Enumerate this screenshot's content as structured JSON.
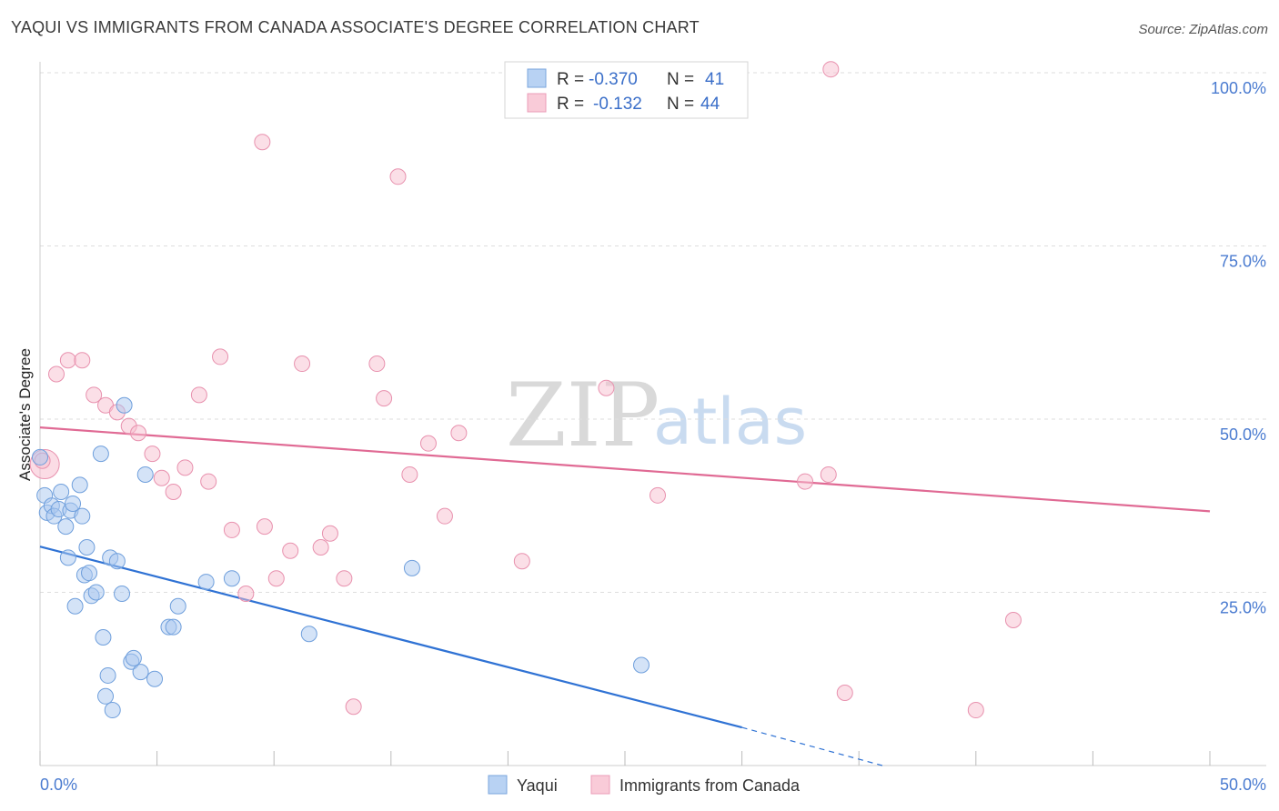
{
  "header": {
    "title": "YAQUI VS IMMIGRANTS FROM CANADA ASSOCIATE'S DEGREE CORRELATION CHART",
    "source": "Source: ZipAtlas.com"
  },
  "stats": {
    "yaqui": {
      "r_label": "R =",
      "r_value": "-0.370",
      "n_label": "N =",
      "n_value": "41"
    },
    "canada": {
      "r_label": "R =",
      "r_value": "-0.132",
      "n_label": "N =",
      "n_value": "44"
    }
  },
  "watermark": {
    "zip": "ZIP",
    "atlas": "atlas"
  },
  "legend": {
    "series1": "Yaqui",
    "series2": "Immigrants from Canada"
  },
  "colors": {
    "yaqui_fill": "#a9c8f0",
    "yaqui_stroke": "#6f9fdc",
    "yaqui_line": "#2f72d4",
    "canada_fill": "#f7bfd0",
    "canada_stroke": "#e891ae",
    "canada_line": "#e06a94"
  },
  "chart_data": {
    "type": "scatter",
    "title": "YAQUI VS IMMIGRANTS FROM CANADA ASSOCIATE'S DEGREE CORRELATION CHART",
    "xlabel": "",
    "ylabel": "Associate's Degree",
    "xlim": [
      0,
      50
    ],
    "ylim": [
      0,
      100
    ],
    "x_ticks": [
      0,
      5,
      10,
      15,
      20,
      25,
      30,
      35,
      40,
      45,
      50
    ],
    "x_tick_labels": {
      "left": "0.0%",
      "right": "50.0%"
    },
    "y_ticks": [
      25,
      50,
      75,
      100
    ],
    "y_tick_labels": [
      "25.0%",
      "50.0%",
      "75.0%",
      "100.0%"
    ],
    "grid": true,
    "legend_position": "bottom-center",
    "series": [
      {
        "name": "Yaqui",
        "r": -0.37,
        "n": 41,
        "trend": {
          "x0": 0,
          "y0": 31.6,
          "x1": 30,
          "y1": 5.5,
          "dashed_to": [
            36,
            0
          ]
        },
        "points": [
          [
            0.0,
            44.5
          ],
          [
            0.2,
            39.0
          ],
          [
            0.3,
            36.5
          ],
          [
            0.5,
            37.5
          ],
          [
            0.6,
            36.0
          ],
          [
            0.8,
            37.0
          ],
          [
            0.9,
            39.5
          ],
          [
            1.1,
            34.5
          ],
          [
            1.2,
            30.0
          ],
          [
            1.3,
            36.8
          ],
          [
            1.4,
            37.8
          ],
          [
            1.5,
            23.0
          ],
          [
            1.7,
            40.5
          ],
          [
            1.8,
            36.0
          ],
          [
            1.9,
            27.5
          ],
          [
            2.0,
            31.5
          ],
          [
            2.1,
            27.8
          ],
          [
            2.2,
            24.5
          ],
          [
            2.4,
            25.0
          ],
          [
            2.6,
            45.0
          ],
          [
            2.7,
            18.5
          ],
          [
            2.8,
            10.0
          ],
          [
            2.9,
            13.0
          ],
          [
            3.0,
            30.0
          ],
          [
            3.1,
            8.0
          ],
          [
            3.3,
            29.5
          ],
          [
            3.5,
            24.8
          ],
          [
            3.6,
            52.0
          ],
          [
            3.9,
            15.0
          ],
          [
            4.0,
            15.5
          ],
          [
            4.3,
            13.5
          ],
          [
            4.5,
            42.0
          ],
          [
            4.9,
            12.5
          ],
          [
            5.5,
            20.0
          ],
          [
            5.7,
            20.0
          ],
          [
            5.9,
            23.0
          ],
          [
            7.1,
            26.5
          ],
          [
            8.2,
            27.0
          ],
          [
            11.5,
            19.0
          ],
          [
            15.9,
            28.5
          ],
          [
            25.7,
            14.5
          ]
        ]
      },
      {
        "name": "Immigrants from Canada",
        "r": -0.132,
        "n": 44,
        "trend": {
          "x0": 0,
          "y0": 48.8,
          "x1": 50,
          "y1": 36.7
        },
        "points": [
          [
            0.2,
            43.5
          ],
          [
            0.7,
            56.5
          ],
          [
            1.2,
            58.5
          ],
          [
            1.8,
            58.5
          ],
          [
            2.3,
            53.5
          ],
          [
            2.8,
            52.0
          ],
          [
            3.3,
            51.0
          ],
          [
            3.8,
            49.0
          ],
          [
            4.2,
            48.0
          ],
          [
            4.8,
            45.0
          ],
          [
            5.2,
            41.5
          ],
          [
            5.7,
            39.5
          ],
          [
            6.2,
            43.0
          ],
          [
            6.8,
            53.5
          ],
          [
            7.2,
            41.0
          ],
          [
            7.7,
            59.0
          ],
          [
            8.2,
            34.0
          ],
          [
            8.8,
            24.8
          ],
          [
            9.5,
            90.0
          ],
          [
            9.6,
            34.5
          ],
          [
            10.1,
            27.0
          ],
          [
            10.7,
            31.0
          ],
          [
            11.2,
            58.0
          ],
          [
            12.0,
            31.5
          ],
          [
            12.4,
            33.5
          ],
          [
            13.0,
            27.0
          ],
          [
            13.4,
            8.5
          ],
          [
            14.4,
            58.0
          ],
          [
            14.7,
            53.0
          ],
          [
            15.3,
            85.0
          ],
          [
            15.8,
            42.0
          ],
          [
            16.6,
            46.5
          ],
          [
            17.3,
            36.0
          ],
          [
            17.9,
            48.0
          ],
          [
            20.6,
            29.5
          ],
          [
            24.2,
            54.5
          ],
          [
            26.4,
            39.0
          ],
          [
            32.7,
            41.0
          ],
          [
            33.7,
            42.0
          ],
          [
            33.8,
            100.5
          ],
          [
            34.4,
            10.5
          ],
          [
            40.0,
            8.0
          ],
          [
            41.6,
            21.0
          ],
          [
            0.1,
            44.0
          ]
        ]
      }
    ]
  }
}
